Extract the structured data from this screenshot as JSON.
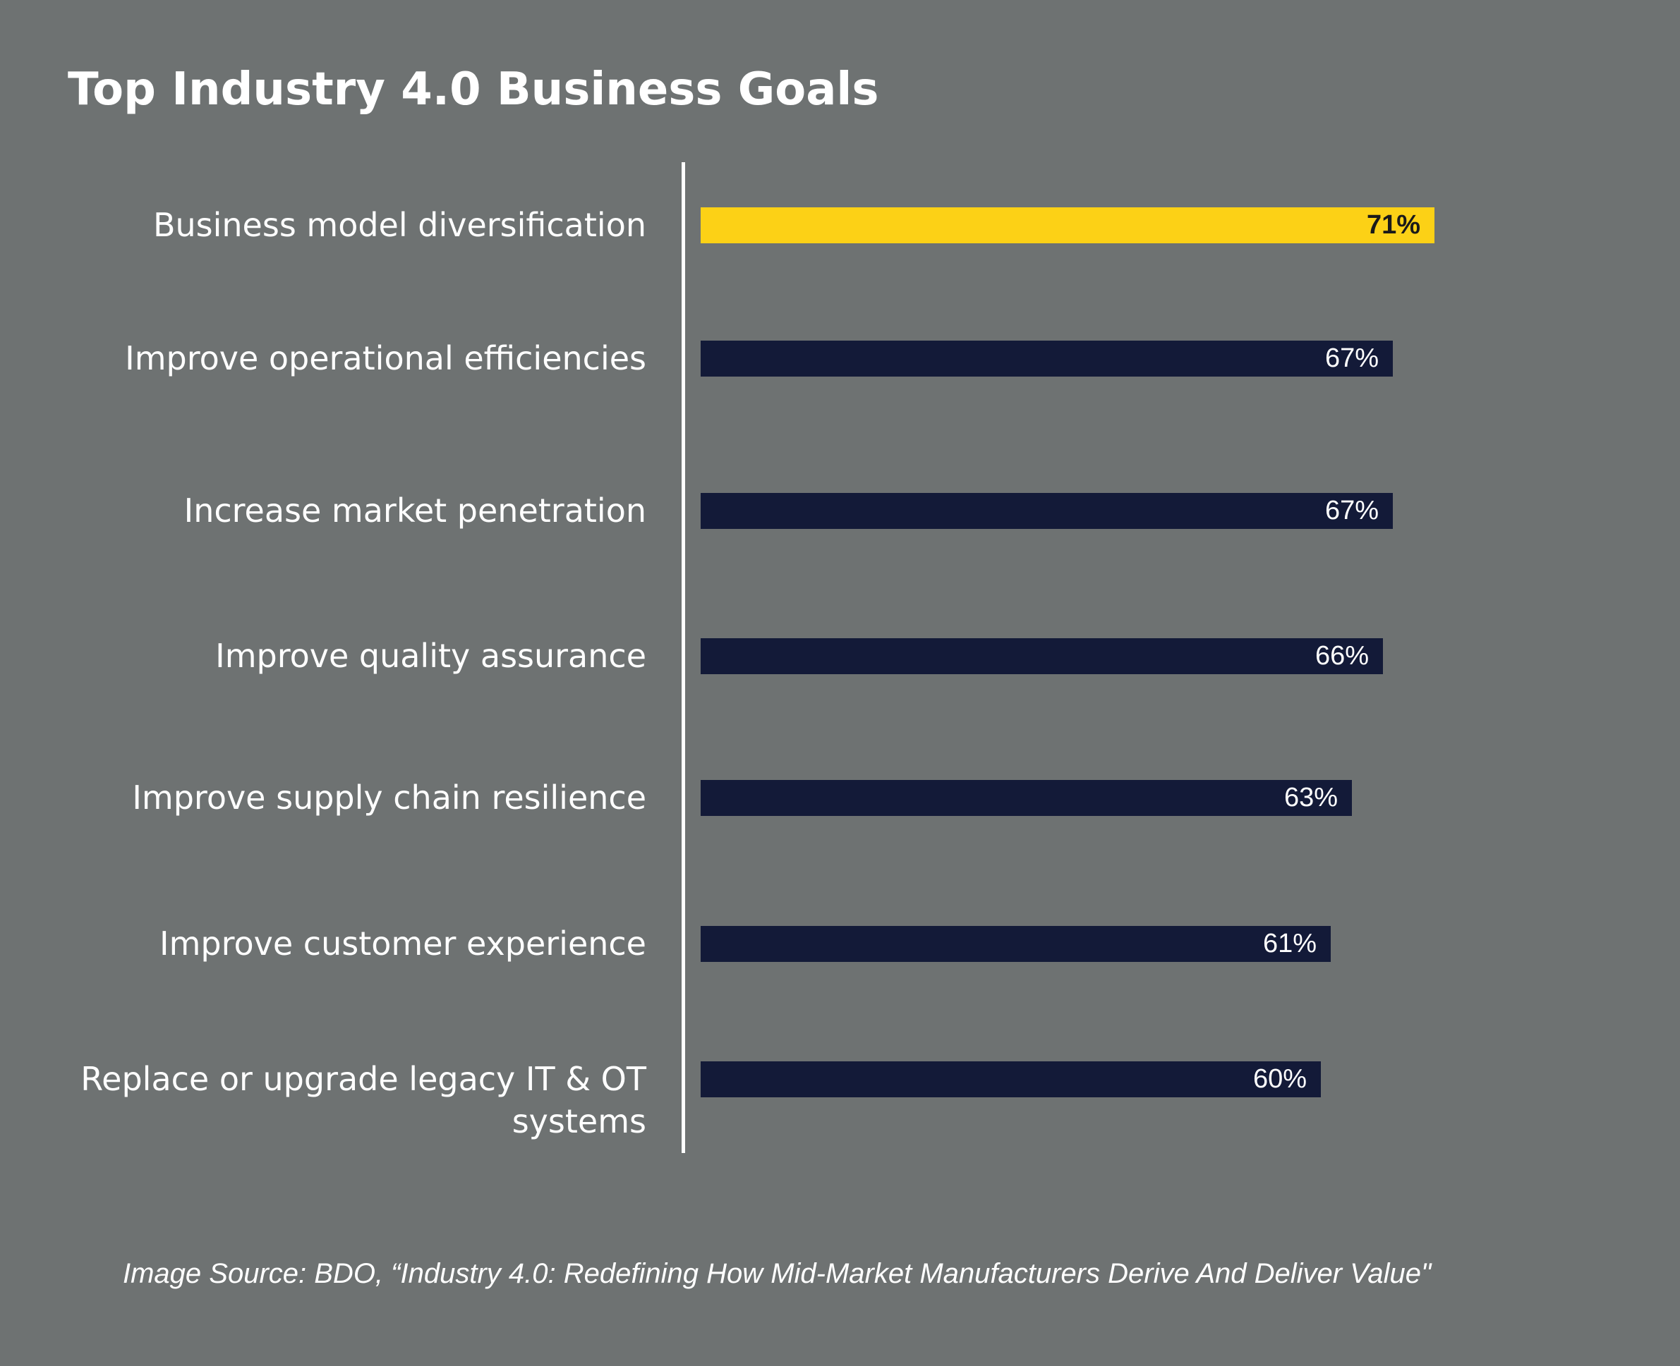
{
  "chart_data": {
    "type": "bar",
    "orientation": "horizontal",
    "title": "Top Industry 4.0 Business Goals",
    "categories": [
      "Business model diversification",
      "Improve operational efficiencies",
      "Increase market penetration",
      "Improve quality assurance",
      "Improve supply chain resilience",
      "Improve customer experience",
      "Replace or upgrade legacy IT & OT systems"
    ],
    "values": [
      71,
      67,
      67,
      66,
      63,
      61,
      60
    ],
    "value_labels": [
      "71%",
      "67%",
      "67%",
      "66%",
      "63%",
      "61%",
      "60%"
    ],
    "value_unit": "%",
    "xlim": [
      0,
      100
    ],
    "grid": false,
    "legend": "none",
    "highlight_index": 0,
    "colors": {
      "highlight": "#fcd116",
      "bar": "#131a38",
      "background": "#6e7272",
      "text": "#ffffff",
      "highlight_text": "#1a1a1a"
    }
  },
  "source": "Image Source: BDO, “Industry 4.0: Redefining How Mid-Market Manufacturers Derive And Deliver Value\""
}
